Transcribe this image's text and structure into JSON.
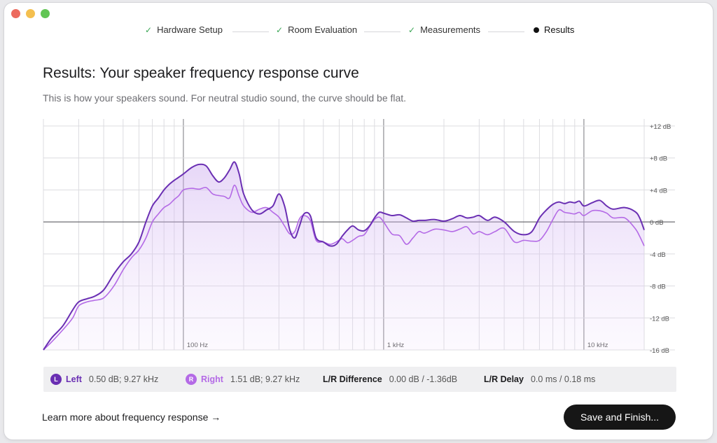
{
  "stepper": {
    "steps": [
      {
        "label": "Hardware Setup",
        "status": "done"
      },
      {
        "label": "Room Evaluation",
        "status": "done"
      },
      {
        "label": "Measurements",
        "status": "done"
      },
      {
        "label": "Results",
        "status": "current"
      }
    ],
    "done_icon": "check-icon",
    "current_icon": "dot-icon"
  },
  "header": {
    "title": "Results: Your speaker frequency response curve",
    "subtitle": "This is how your speakers sound. For neutral studio sound, the curve should be flat."
  },
  "chart_data": {
    "type": "line",
    "xscale": "log",
    "xlim": [
      20,
      20000
    ],
    "ylim": [
      -16,
      12
    ],
    "x_ticks": [
      {
        "value": 100,
        "label": "100 Hz"
      },
      {
        "value": 1000,
        "label": "1 kHz"
      },
      {
        "value": 10000,
        "label": "10 kHz"
      }
    ],
    "y_ticks": [
      {
        "value": 12,
        "label": "+12 dB"
      },
      {
        "value": 8,
        "label": "+8 dB"
      },
      {
        "value": 4,
        "label": "+4 dB"
      },
      {
        "value": 0,
        "label": "0 dB"
      },
      {
        "value": -4,
        "label": "-4 dB"
      },
      {
        "value": -8,
        "label": "-8 dB"
      },
      {
        "value": -12,
        "label": "-12 dB"
      },
      {
        "value": -16,
        "label": "-16 dB"
      }
    ],
    "grid": true,
    "series": [
      {
        "name": "Left",
        "color": "#6a2fb3",
        "x": [
          20,
          22,
          25,
          28,
          30,
          33,
          36,
          40,
          45,
          50,
          55,
          60,
          65,
          70,
          75,
          80,
          85,
          90,
          95,
          100,
          110,
          120,
          130,
          140,
          150,
          160,
          170,
          180,
          190,
          200,
          220,
          240,
          260,
          280,
          300,
          320,
          340,
          360,
          380,
          400,
          430,
          460,
          500,
          540,
          580,
          620,
          660,
          700,
          750,
          800,
          850,
          900,
          950,
          1000,
          1100,
          1200,
          1300,
          1400,
          1500,
          1600,
          1800,
          2000,
          2200,
          2400,
          2600,
          2800,
          3000,
          3300,
          3600,
          4000,
          4500,
          5000,
          5500,
          6000,
          6500,
          7000,
          7500,
          8000,
          8500,
          9000,
          9500,
          10000,
          11000,
          12000,
          13000,
          14000,
          16000,
          18000,
          19000,
          20000
        ],
        "values": [
          -16,
          -14.5,
          -13,
          -11,
          -10,
          -9.6,
          -9.3,
          -8.5,
          -6.5,
          -5,
          -4,
          -2.5,
          0,
          2,
          3,
          4,
          4.7,
          5.2,
          5.6,
          6,
          6.8,
          7.2,
          7,
          5.8,
          5,
          5.5,
          6.5,
          7.5,
          6,
          3.5,
          1.5,
          1,
          1.5,
          2,
          3.5,
          2,
          -1,
          -2,
          -0.5,
          1,
          0.8,
          -2,
          -2.5,
          -3,
          -2.8,
          -1.8,
          -1,
          -0.5,
          -1,
          -1.1,
          -0.5,
          0.5,
          1.2,
          1.1,
          0.8,
          0.9,
          0.5,
          0.1,
          0.2,
          0.2,
          0.3,
          0.1,
          0.4,
          0.8,
          0.5,
          0.6,
          0.8,
          0.2,
          0.6,
          0,
          -1.2,
          -1.6,
          -1.2,
          0.5,
          1.5,
          2.2,
          2.5,
          2.3,
          2.5,
          2.4,
          2.6,
          2,
          2.4,
          2.7,
          2.0,
          1.6,
          1.8,
          1.3,
          0.5,
          -1
        ]
      },
      {
        "name": "Right",
        "color": "#b46ae6",
        "x": [
          20,
          22,
          25,
          28,
          30,
          33,
          36,
          40,
          45,
          50,
          55,
          60,
          65,
          70,
          75,
          80,
          85,
          90,
          95,
          100,
          110,
          120,
          130,
          140,
          150,
          160,
          170,
          180,
          190,
          200,
          220,
          240,
          260,
          280,
          300,
          320,
          340,
          360,
          380,
          400,
          430,
          460,
          500,
          540,
          580,
          620,
          660,
          700,
          750,
          800,
          850,
          900,
          950,
          1000,
          1100,
          1200,
          1300,
          1400,
          1500,
          1600,
          1800,
          2000,
          2200,
          2400,
          2600,
          2800,
          3000,
          3300,
          3600,
          4000,
          4500,
          5000,
          5500,
          6000,
          6500,
          7000,
          7500,
          8000,
          8500,
          9000,
          9500,
          10000,
          11000,
          12000,
          13000,
          14000,
          16000,
          18000,
          19000,
          20000
        ],
        "values": [
          -16,
          -15,
          -13.5,
          -12,
          -10.5,
          -10,
          -9.8,
          -9.5,
          -8,
          -6,
          -4.5,
          -3.5,
          -2,
          0,
          1,
          1.8,
          2.2,
          2.8,
          3.3,
          4,
          4.2,
          4.1,
          4.3,
          3.5,
          3.3,
          3.2,
          3,
          4.6,
          3.2,
          2,
          1.2,
          1.6,
          1.8,
          1.2,
          0.6,
          -0.5,
          -1.5,
          -1.2,
          0.4,
          0.8,
          0.2,
          -2.3,
          -2.5,
          -2.8,
          -2.5,
          -2.1,
          -2.6,
          -2.3,
          -1.8,
          -1.6,
          -0.6,
          0.3,
          0.6,
          0,
          -1.5,
          -1.7,
          -2.8,
          -2,
          -1.2,
          -1.4,
          -0.9,
          -1.0,
          -1.2,
          -0.9,
          -0.6,
          -1.5,
          -1.2,
          -1.6,
          -1.2,
          -0.8,
          -2.5,
          -2.3,
          -2.4,
          -2.3,
          -1.2,
          0.3,
          1.5,
          1.2,
          1.1,
          1.0,
          1.2,
          0.8,
          1.4,
          1.4,
          1.1,
          0.5,
          0.5,
          -0.8,
          -1.8,
          -3
        ]
      }
    ]
  },
  "legend": {
    "left_badge": "L",
    "left_label": "Left",
    "left_value": "0.50 dB; 9.27 kHz",
    "right_badge": "R",
    "right_label": "Right",
    "right_value": "1.51 dB; 9.27 kHz",
    "diff_label": "L/R Difference",
    "diff_value": "0.00 dB / -1.36dB",
    "delay_label": "L/R Delay",
    "delay_value": "0.0 ms / 0.18 ms"
  },
  "footer": {
    "learn_more": "Learn more about frequency response →",
    "save_button": "Save and Finish..."
  }
}
